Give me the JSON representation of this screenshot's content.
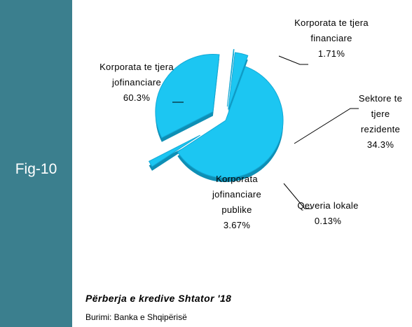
{
  "chart_data": {
    "type": "pie",
    "figure_label": "Fig-10",
    "title": "Përberja e kredive Shtator '18",
    "source": "Burimi: Banka e Shqipërisë",
    "categories": [
      "Korporata te tjera jofinanciare",
      "Korporata te tjera financiare",
      "Sektore te tjere rezidente",
      "Qeveria lokale",
      "Korporata jofinanciare publike"
    ],
    "values": [
      60.3,
      1.71,
      34.3,
      0.13,
      3.67
    ],
    "value_labels": [
      "60.3%",
      "1.71%",
      "34.3%",
      "0.13%",
      "3.67%"
    ],
    "color": "#1cc6f2"
  }
}
